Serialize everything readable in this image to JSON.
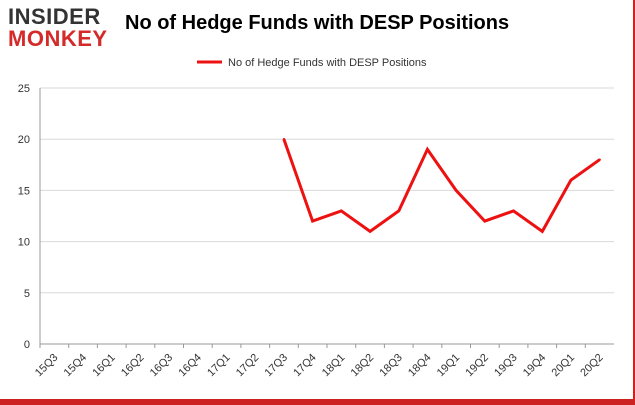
{
  "logo": {
    "line1": "INSIDER",
    "line2": "MONKEY"
  },
  "colors": {
    "series": "#ee1111",
    "grid": "#d9d9d9",
    "axis": "#999999",
    "brand_red": "#d42a2a"
  },
  "chart_data": {
    "type": "line",
    "title": "No of Hedge Funds with DESP Positions",
    "xlabel": "",
    "ylabel": "",
    "ylim": [
      0,
      25
    ],
    "yticks": [
      0,
      5,
      10,
      15,
      20,
      25
    ],
    "grid": true,
    "legend_position": "top-center",
    "categories": [
      "15Q3",
      "15Q4",
      "16Q1",
      "16Q2",
      "16Q3",
      "16Q4",
      "17Q1",
      "17Q2",
      "17Q3",
      "17Q4",
      "18Q1",
      "18Q2",
      "18Q3",
      "18Q4",
      "19Q1",
      "19Q2",
      "19Q3",
      "19Q4",
      "20Q1",
      "20Q2"
    ],
    "series": [
      {
        "name": "No of Hedge Funds with DESP Positions",
        "values": [
          null,
          null,
          null,
          null,
          null,
          null,
          null,
          null,
          20,
          12,
          13,
          11,
          13,
          19,
          15,
          12,
          13,
          11,
          16,
          18
        ]
      }
    ]
  }
}
